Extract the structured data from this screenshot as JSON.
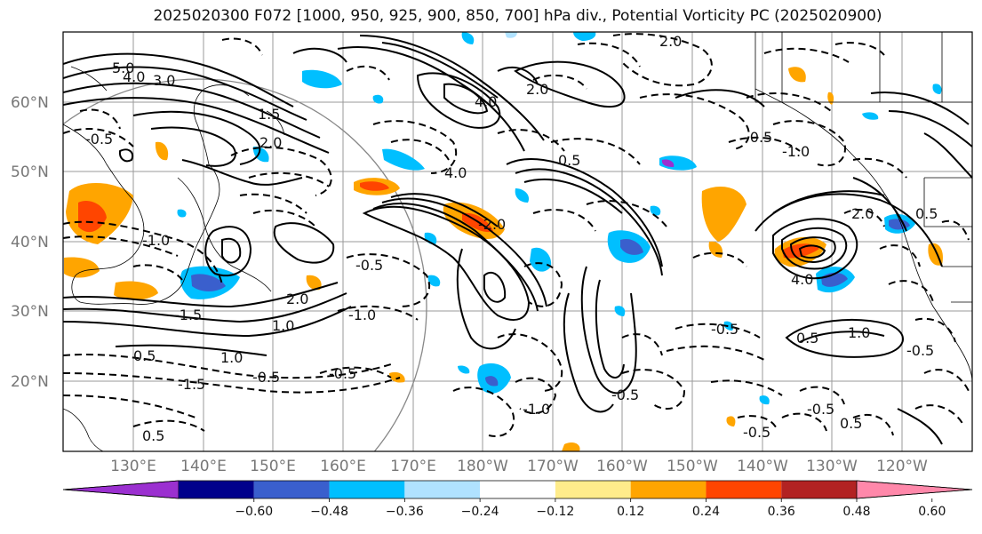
{
  "title": "2025020300 F072 [1000, 950, 925, 900, 850, 700] hPa div., Potential Vorticity PC (2025020900)",
  "lat_labels": [
    "60°N",
    "50°N",
    "40°N",
    "30°N",
    "20°N"
  ],
  "lon_labels": [
    "130°E",
    "140°E",
    "150°E",
    "160°E",
    "170°E",
    "180°W",
    "170°W",
    "160°W",
    "150°W",
    "140°W",
    "130°W",
    "120°W"
  ],
  "colorbar": {
    "ticks": [
      "−0.60",
      "−0.48",
      "−0.36",
      "−0.24",
      "−0.12",
      "0.12",
      "0.24",
      "0.36",
      "0.48",
      "0.60"
    ],
    "colors": [
      "#9b30d0",
      "#00008b",
      "#3a5fcd",
      "#00bfff",
      "#b0e2ff",
      "#ffffff",
      "#ffec8b",
      "#ffa500",
      "#ff4500",
      "#b22222",
      "#ff88aa"
    ]
  },
  "contour_labels": [
    "2.0",
    "5.0",
    "4.0",
    "3.0",
    "1.5",
    "2.0",
    "-0.5",
    "-1.0",
    "-1.5",
    "1.0",
    "0.5",
    "-0.5",
    "-1.0",
    "-1.5",
    "-2.0",
    "4.0",
    "2.0",
    "-0.5",
    "-1.0",
    "2.0",
    "4.0",
    "0.5",
    "-0.5",
    "-1.0",
    "0.5",
    "1.0",
    "0.5",
    "-0.5",
    "0.5",
    "-0.5",
    "1.0",
    "-0.5",
    "0.5",
    "-0.5",
    "2.0",
    "4.0",
    "-0.5",
    "-0.5"
  ]
}
